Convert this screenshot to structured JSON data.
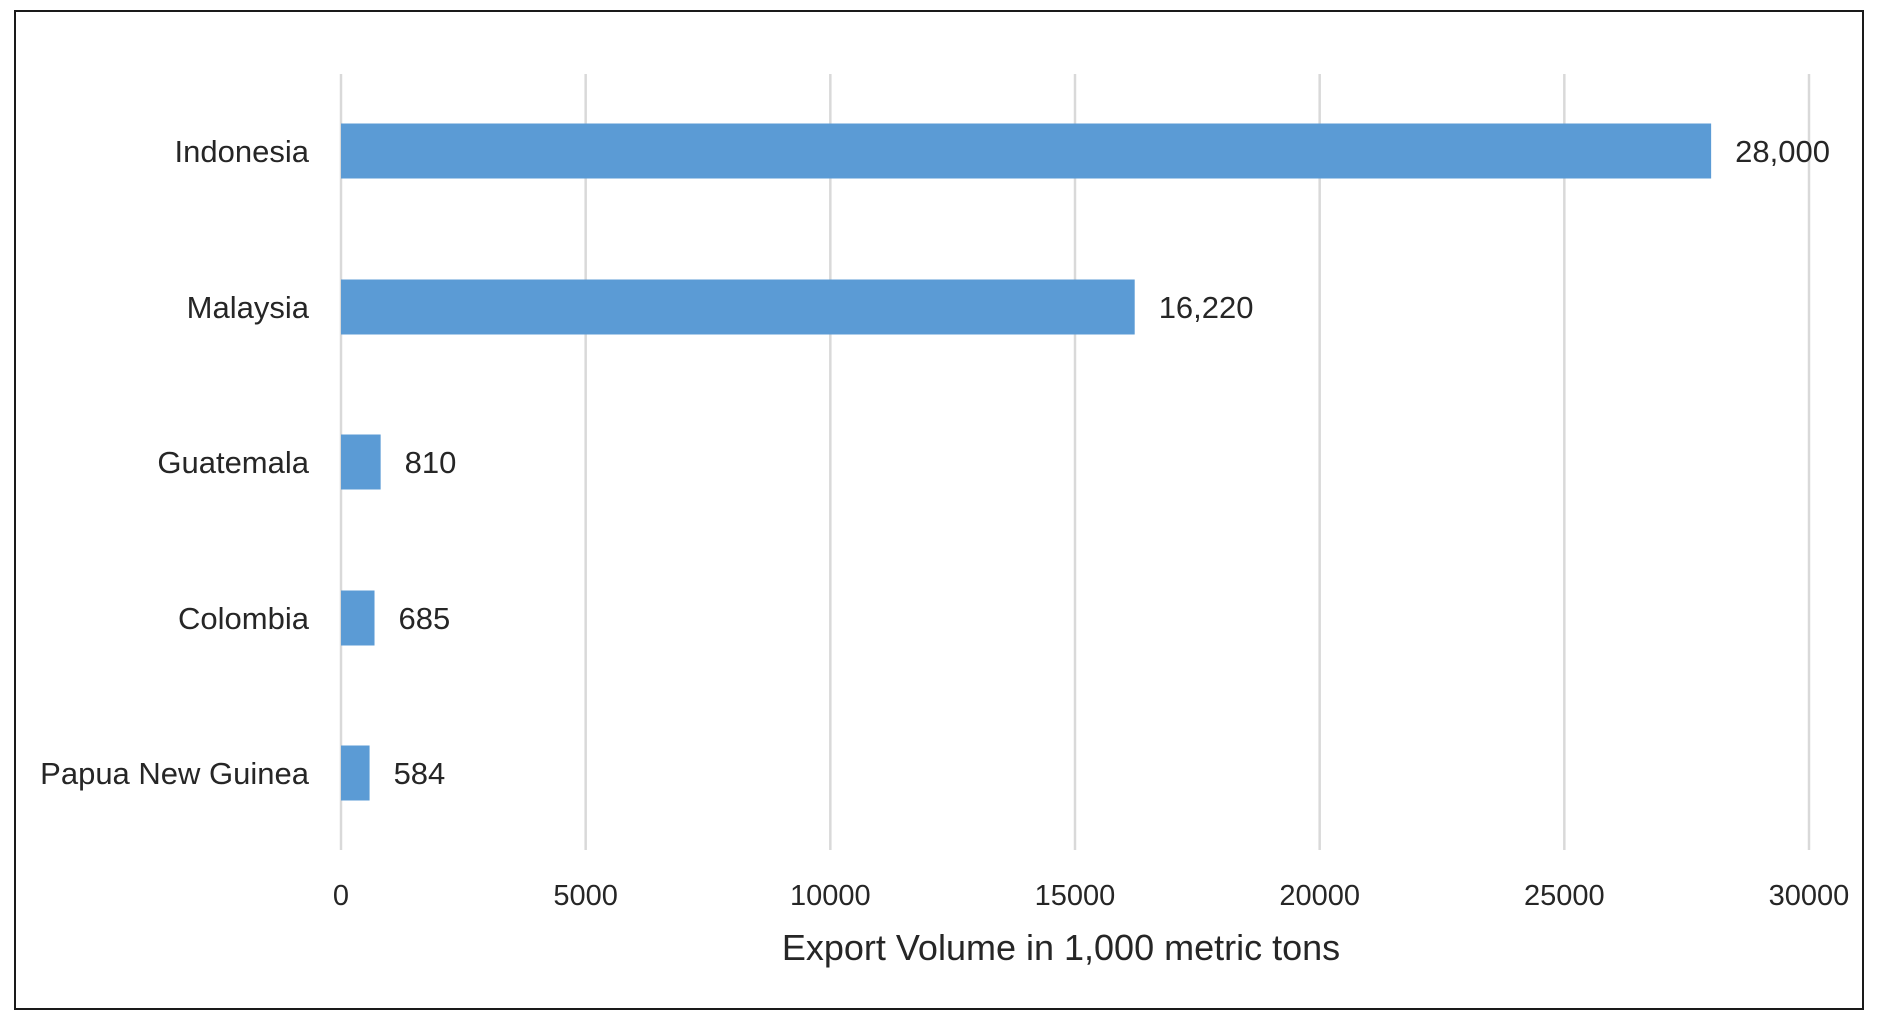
{
  "chart_data": {
    "type": "bar",
    "orientation": "horizontal",
    "title": "",
    "xlabel": "Export Volume in 1,000 metric tons",
    "ylabel": "",
    "categories": [
      "Indonesia",
      "Malaysia",
      "Guatemala",
      "Colombia",
      "Papua New Guinea"
    ],
    "values": [
      28000,
      16220,
      810,
      685,
      584
    ],
    "data_labels": [
      "28,000",
      "16,220",
      "810",
      "685",
      "584"
    ],
    "xlim": [
      0,
      30000
    ],
    "x_ticks": [
      0,
      5000,
      10000,
      15000,
      20000,
      25000,
      30000
    ],
    "x_tick_labels": [
      "0",
      "5000",
      "10000",
      "15000",
      "20000",
      "25000",
      "30000"
    ],
    "grid": "vertical",
    "legend": "none",
    "bar_color": "#5b9bd5",
    "grid_color": "#d9d9d9"
  }
}
